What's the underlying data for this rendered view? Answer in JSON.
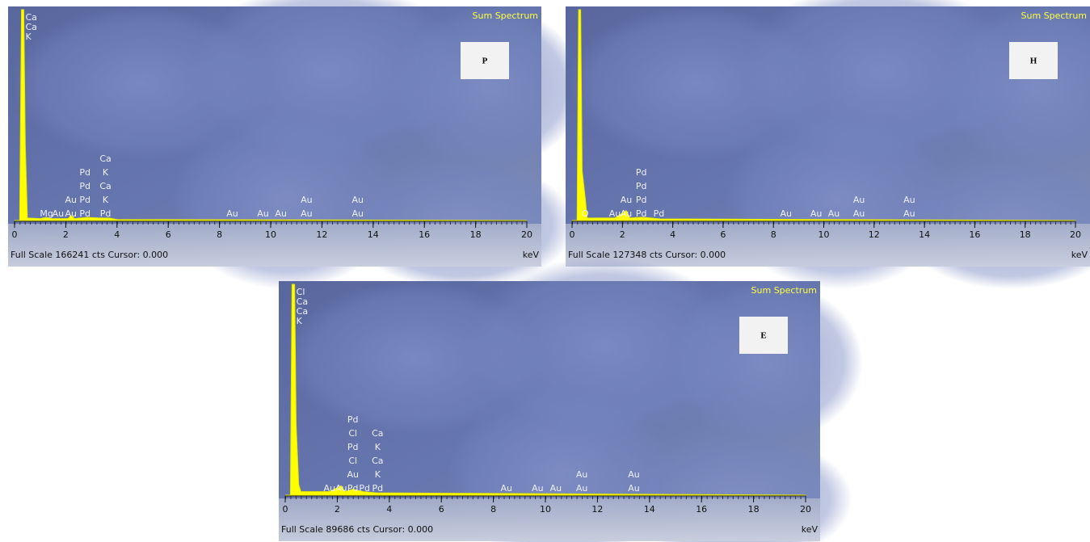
{
  "chart_data": [
    {
      "type": "line",
      "title": "Sum Spectrum",
      "panel_label": "P",
      "x": [
        0,
        0.2,
        0.27,
        0.3,
        0.36,
        0.42,
        0.5,
        1.0,
        1.25,
        1.4,
        2.1,
        2.2,
        2.35,
        2.84,
        3.3,
        3.69,
        4.0,
        20
      ],
      "values": [
        0,
        0,
        166241,
        166241,
        166241,
        60000,
        2000,
        1500,
        2500,
        1500,
        1500,
        4000,
        1500,
        2500,
        2000,
        2000,
        800,
        0
      ],
      "color": "#ffff00",
      "xlim": [
        0,
        20
      ],
      "xticks": [
        0,
        2,
        4,
        6,
        8,
        10,
        12,
        14,
        16,
        18,
        20
      ],
      "ylim": [
        0,
        166241
      ],
      "footer": "Full Scale 166241 cts Cursor: 0.000",
      "x_unit": "keV",
      "peak_labels": [
        {
          "x": 0.3,
          "labels": [
            "Ca",
            "Ca",
            "K"
          ]
        },
        {
          "x": 1.25,
          "labels": [
            "Mg"
          ]
        },
        {
          "x": 1.7,
          "labels": [
            "Au"
          ]
        },
        {
          "x": 2.2,
          "labels": [
            "Au",
            "Au"
          ]
        },
        {
          "x": 2.75,
          "labels": [
            "Pd",
            "Pd",
            "Pd",
            "Pd"
          ]
        },
        {
          "x": 3.55,
          "labels": [
            "Pd",
            "K",
            "Ca",
            "K",
            "Ca"
          ]
        },
        {
          "x": 8.5,
          "labels": [
            "Au"
          ]
        },
        {
          "x": 9.7,
          "labels": [
            "Au"
          ]
        },
        {
          "x": 10.4,
          "labels": [
            "Au"
          ]
        },
        {
          "x": 11.4,
          "labels": [
            "Au",
            "Au"
          ]
        },
        {
          "x": 13.4,
          "labels": [
            "Au",
            "Au"
          ]
        }
      ]
    },
    {
      "type": "line",
      "title": "Sum Spectrum",
      "panel_label": "H",
      "x": [
        0,
        0.2,
        0.26,
        0.3,
        0.34,
        0.4,
        0.52,
        0.6,
        1.7,
        2.15,
        2.3,
        2.8,
        3.5,
        20
      ],
      "values": [
        0,
        0,
        127348,
        127348,
        127348,
        30000,
        14000,
        1500,
        1500,
        6000,
        1500,
        2000,
        1000,
        0
      ],
      "color": "#ffff00",
      "xlim": [
        0,
        20
      ],
      "xticks": [
        0,
        2,
        4,
        6,
        8,
        10,
        12,
        14,
        16,
        18,
        20
      ],
      "ylim": [
        0,
        127348
      ],
      "footer": "Full Scale 127348 cts Cursor: 0.000",
      "x_unit": "keV",
      "peak_labels": [
        {
          "x": 0.52,
          "labels": [
            "O"
          ]
        },
        {
          "x": 1.7,
          "labels": [
            "Au"
          ]
        },
        {
          "x": 2.15,
          "labels": [
            "Au",
            "Au"
          ]
        },
        {
          "x": 2.75,
          "labels": [
            "Pd",
            "Pd",
            "Pd",
            "Pd"
          ]
        },
        {
          "x": 3.45,
          "labels": [
            "Pd"
          ]
        },
        {
          "x": 8.5,
          "labels": [
            "Au"
          ]
        },
        {
          "x": 9.7,
          "labels": [
            "Au"
          ]
        },
        {
          "x": 10.4,
          "labels": [
            "Au"
          ]
        },
        {
          "x": 11.4,
          "labels": [
            "Au",
            "Au"
          ]
        },
        {
          "x": 13.4,
          "labels": [
            "Au",
            "Au"
          ]
        }
      ]
    },
    {
      "type": "line",
      "title": "Sum Spectrum",
      "panel_label": "E",
      "x": [
        0,
        0.2,
        0.26,
        0.3,
        0.36,
        0.42,
        0.52,
        0.6,
        1.7,
        2.15,
        2.3,
        2.6,
        3.0,
        3.5,
        20
      ],
      "values": [
        0,
        0,
        89686,
        89686,
        89686,
        30000,
        4500,
        1500,
        1500,
        4000,
        1500,
        2500,
        1500,
        1000,
        0
      ],
      "color": "#ffff00",
      "xlim": [
        0,
        20
      ],
      "xticks": [
        0,
        2,
        4,
        6,
        8,
        10,
        12,
        14,
        16,
        18,
        20
      ],
      "ylim": [
        0,
        89686
      ],
      "footer": "Full Scale 89686 cts Cursor: 0.000",
      "x_unit": "keV",
      "peak_labels": [
        {
          "x": 0.3,
          "labels": [
            "Cl",
            "Ca",
            "Ca",
            "K"
          ]
        },
        {
          "x": 1.7,
          "labels": [
            "Au"
          ]
        },
        {
          "x": 2.15,
          "labels": [
            "Au"
          ]
        },
        {
          "x": 2.6,
          "labels": [
            "Pd",
            "Au",
            "Cl",
            "Pd",
            "Cl",
            "Pd"
          ]
        },
        {
          "x": 3.05,
          "labels": [
            "Pd"
          ]
        },
        {
          "x": 3.55,
          "labels": [
            "Pd",
            "K",
            "Ca",
            "K",
            "Ca"
          ]
        },
        {
          "x": 8.5,
          "labels": [
            "Au"
          ]
        },
        {
          "x": 9.7,
          "labels": [
            "Au"
          ]
        },
        {
          "x": 10.4,
          "labels": [
            "Au"
          ]
        },
        {
          "x": 11.4,
          "labels": [
            "Au",
            "Au"
          ]
        },
        {
          "x": 13.4,
          "labels": [
            "Au",
            "Au"
          ]
        }
      ]
    }
  ]
}
